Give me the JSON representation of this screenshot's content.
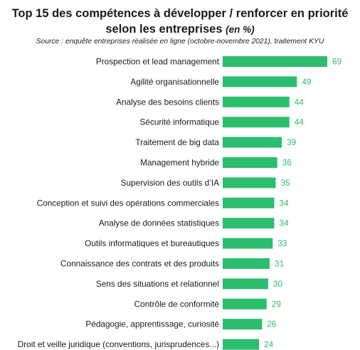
{
  "chart_data": {
    "type": "bar",
    "orientation": "horizontal",
    "title": "Top 15 des compétences à développer / renforcer en priorité selon les entreprises",
    "title_unit": "(en %)",
    "source": "Source : enquête entreprises réalisée en ligne (octobre-novembre 2021), traitement KYU",
    "categories": [
      "Prospection et lead management",
      "Agilité organisationnelle",
      "Analyse des besoins clients",
      "Sécurité informatique",
      "Traitement de big data",
      "Management hybride",
      "Supervision des outils d’IA",
      "Conception et suivi des opérations commerciales",
      "Analyse de données statistiques",
      "Outils informatiques et bureautiques",
      "Connaissance des contrats et des produits",
      "Sens des situations et relationnel",
      "Contrôle de conformité",
      "Pédagogie, apprentissage, curiosité",
      "Droit et veille juridique (conventions, jurisprudences...)"
    ],
    "values": [
      69,
      49,
      44,
      44,
      39,
      36,
      35,
      34,
      34,
      33,
      31,
      30,
      29,
      26,
      24
    ],
    "bar_color": "#2dbd6e",
    "label_color": "#2dbd6e",
    "grid": false,
    "legend": "none"
  }
}
